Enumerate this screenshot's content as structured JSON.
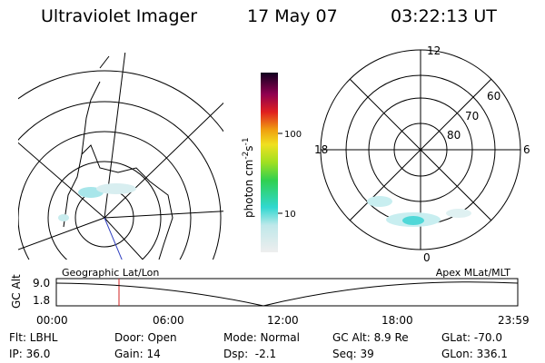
{
  "header": {
    "title": "Ultraviolet Imager",
    "date": "17 May 07",
    "time": "03:22:13 UT"
  },
  "colorbar": {
    "ticks": [
      "100",
      "10"
    ],
    "unit": {
      "base": "photon cm",
      "exp1": "-2",
      "mid": "s",
      "exp2": "-1"
    }
  },
  "polar": {
    "mlt_labels": [
      "12",
      "18",
      "6",
      "0"
    ],
    "lat_labels": [
      "60",
      "70",
      "80"
    ]
  },
  "timeline": {
    "left_label": "Geographic Lat/Lon",
    "right_label": "Apex MLat/MLT",
    "y_title": "GC Alt",
    "y_labels": [
      "9.0",
      "1.8"
    ],
    "x_labels": [
      "00:00",
      "06:00",
      "12:00",
      "18:00",
      "23:59"
    ]
  },
  "footer": {
    "rows": [
      [
        "Flt: LBHL",
        "Door: Open",
        "Mode: Normal",
        "GC Alt: 8.9 Re",
        "GLat: -70.0"
      ],
      [
        "IP: 36.0",
        "Gain: 14",
        "Dsp:  -2.1",
        "Seq: 39",
        "GLon: 336.1"
      ]
    ]
  }
}
